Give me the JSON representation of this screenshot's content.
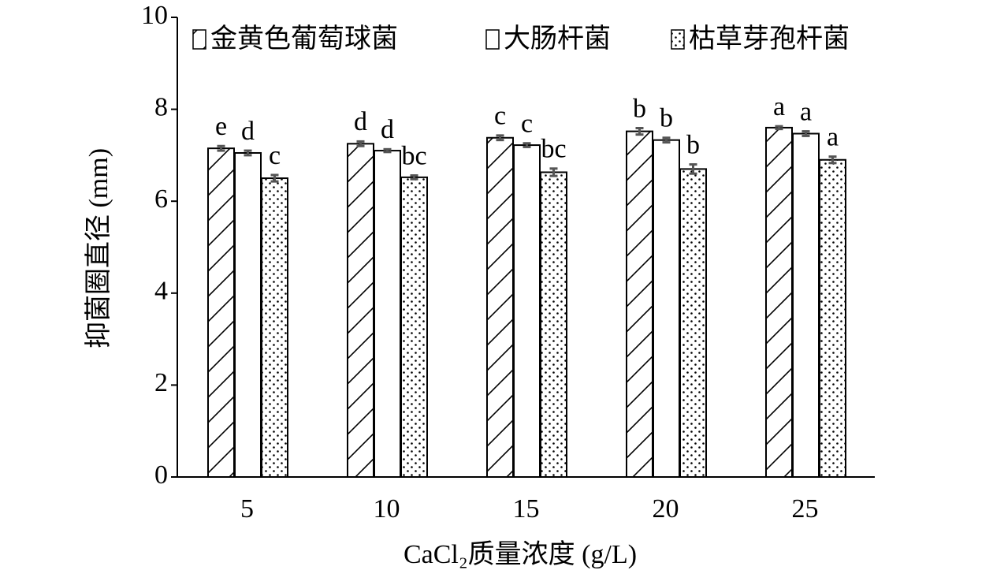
{
  "chart_data": {
    "type": "bar",
    "x_label": "CaCl₂质量浓度 (g/L)",
    "y_label": "抑菌圈直径 (mm)",
    "categories": [
      "5",
      "10",
      "15",
      "20",
      "25"
    ],
    "series": [
      {
        "name": "金黄色葡萄球菌",
        "color": "#000000",
        "pattern": "hatch",
        "values": [
          7.15,
          7.25,
          7.38,
          7.52,
          7.6
        ],
        "errors": [
          0.05,
          0.05,
          0.05,
          0.07,
          0.03
        ],
        "letters": [
          "e",
          "d",
          "c",
          "b",
          "a"
        ]
      },
      {
        "name": "大肠杆菌",
        "color": "#000000",
        "pattern": "none",
        "values": [
          7.05,
          7.1,
          7.22,
          7.33,
          7.47
        ],
        "errors": [
          0.05,
          0.03,
          0.04,
          0.05,
          0.05
        ],
        "letters": [
          "d",
          "d",
          "c",
          "b",
          "a"
        ]
      },
      {
        "name": "枯草芽孢杆菌",
        "color": "#000000",
        "pattern": "dots",
        "values": [
          6.5,
          6.52,
          6.63,
          6.7,
          6.9
        ],
        "errors": [
          0.07,
          0.04,
          0.08,
          0.1,
          0.07
        ],
        "letters": [
          "c",
          "bc",
          "bc",
          "b",
          "a"
        ]
      }
    ],
    "ylim": [
      0,
      10
    ],
    "yticks": [
      0,
      2,
      4,
      6,
      8,
      10
    ],
    "grid": false
  }
}
